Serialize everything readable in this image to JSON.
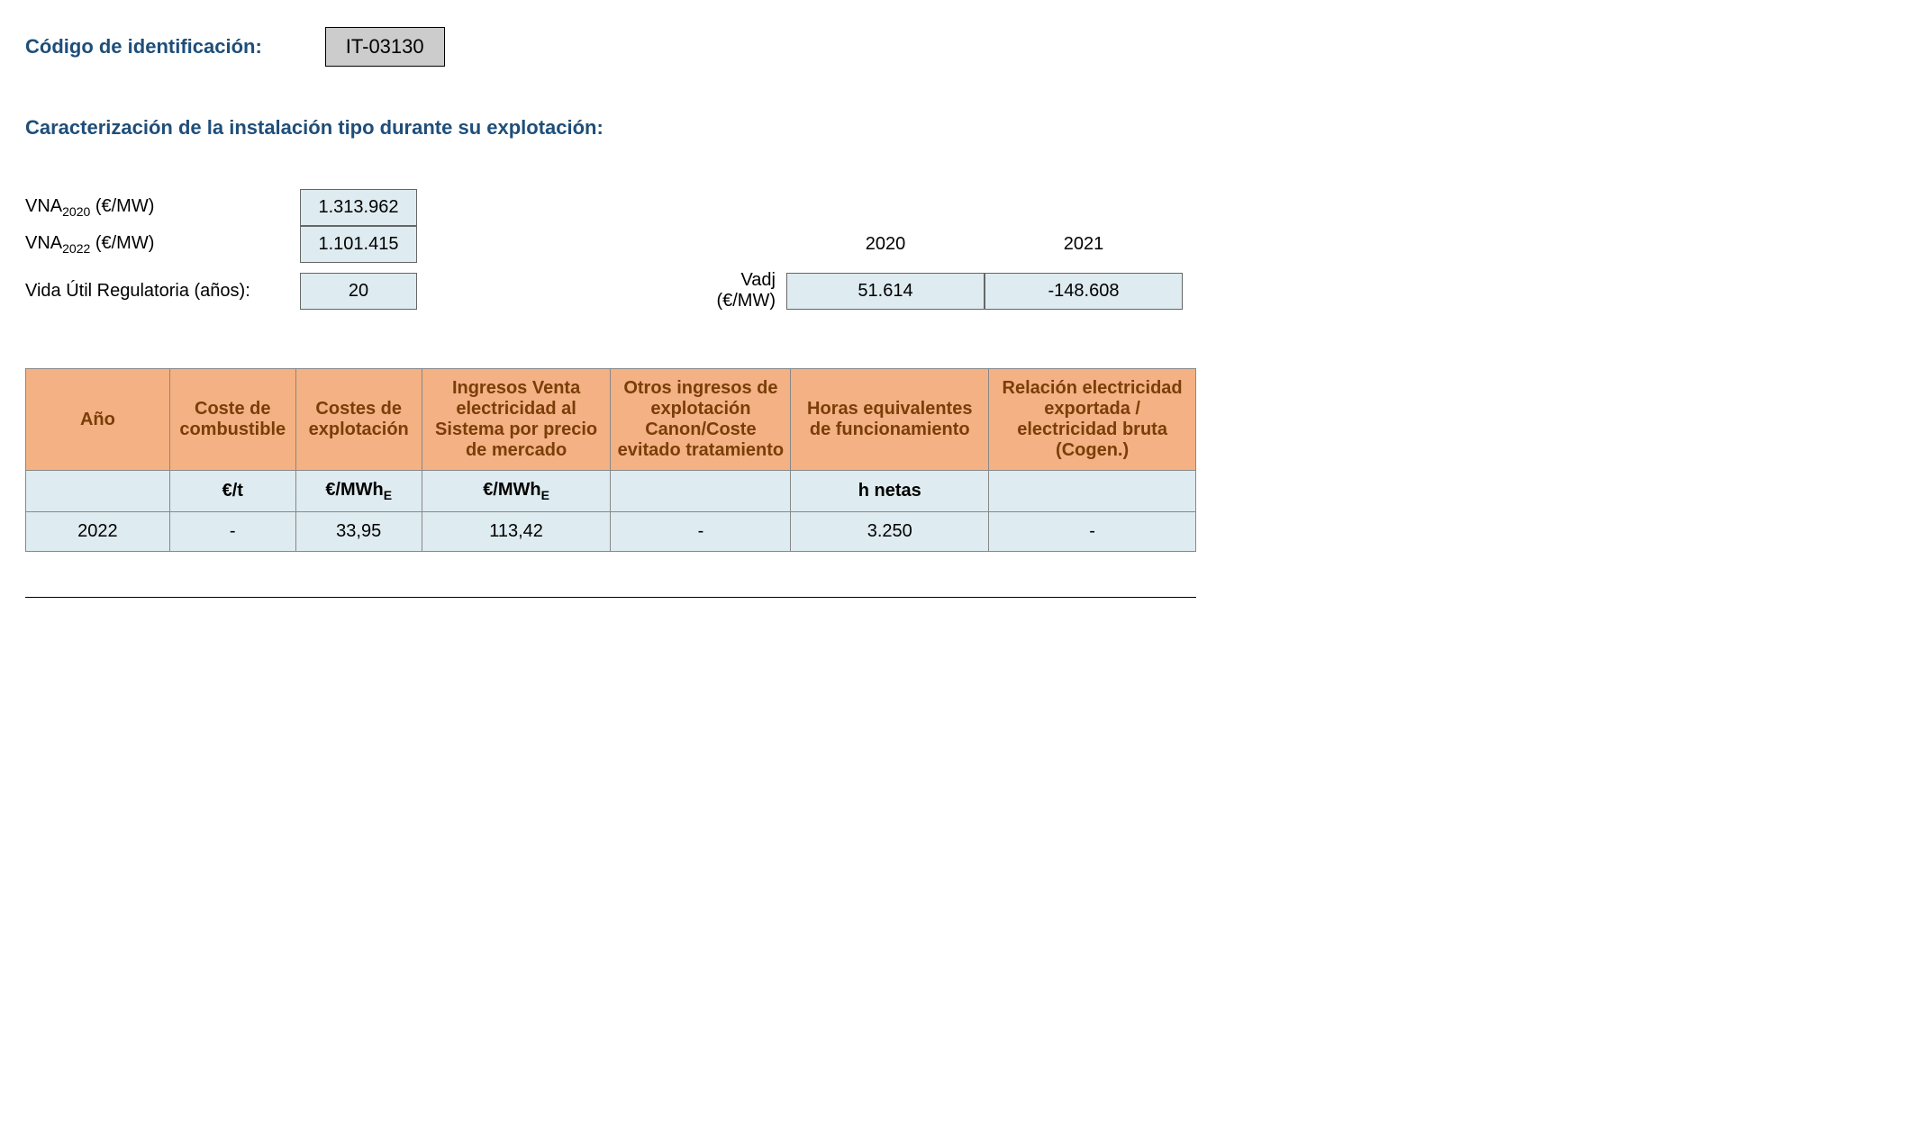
{
  "header": {
    "id_label": "Código de identificación:",
    "id_value": "IT-03130",
    "subtitle": "Caracterización de la instalación tipo durante su explotación:"
  },
  "params": {
    "vna2020_label_prefix": "VNA",
    "vna2020_sub": "2020",
    "vna2020_suffix": " (€/MW)",
    "vna2020_value": "1.313.962",
    "vna2022_label_prefix": "VNA",
    "vna2022_sub": "2022",
    "vna2022_suffix": " (€/MW)",
    "vna2022_value": "1.101.415",
    "vida_label": "Vida Útil Regulatoria (años):",
    "vida_value": "20",
    "vadj_label": "Vadj (€/MW)",
    "year_cols": [
      "2020",
      "2021"
    ],
    "vadj_values": [
      "51.614",
      "-148.608"
    ]
  },
  "table": {
    "columns": [
      "Año",
      "Coste de combustible",
      "Costes de explotación",
      "Ingresos Venta electricidad al Sistema por precio de mercado",
      "Otros ingresos de explotación Canon/Coste evitado tratamiento",
      "Horas equivalentes de funcionamiento",
      "Relación electricidad exportada / electricidad bruta (Cogen.)"
    ],
    "col_widths": [
      "160px",
      "140px",
      "140px",
      "210px",
      "200px",
      "220px",
      "230px"
    ],
    "units": [
      "",
      "€/t",
      "€/MWh|E",
      "€/MWh|E",
      "",
      "h netas",
      ""
    ],
    "rows": [
      [
        "2022",
        "-",
        "33,95",
        "113,42",
        "-",
        "3.250",
        "-"
      ]
    ],
    "header_bg": "#f4b183",
    "header_color": "#7a3e09",
    "cell_bg": "#deebf0",
    "border_color": "#888888"
  },
  "colors": {
    "heading": "#1f4e79",
    "codebox_bg": "#cccccc",
    "valbox_bg": "#deebf0"
  }
}
